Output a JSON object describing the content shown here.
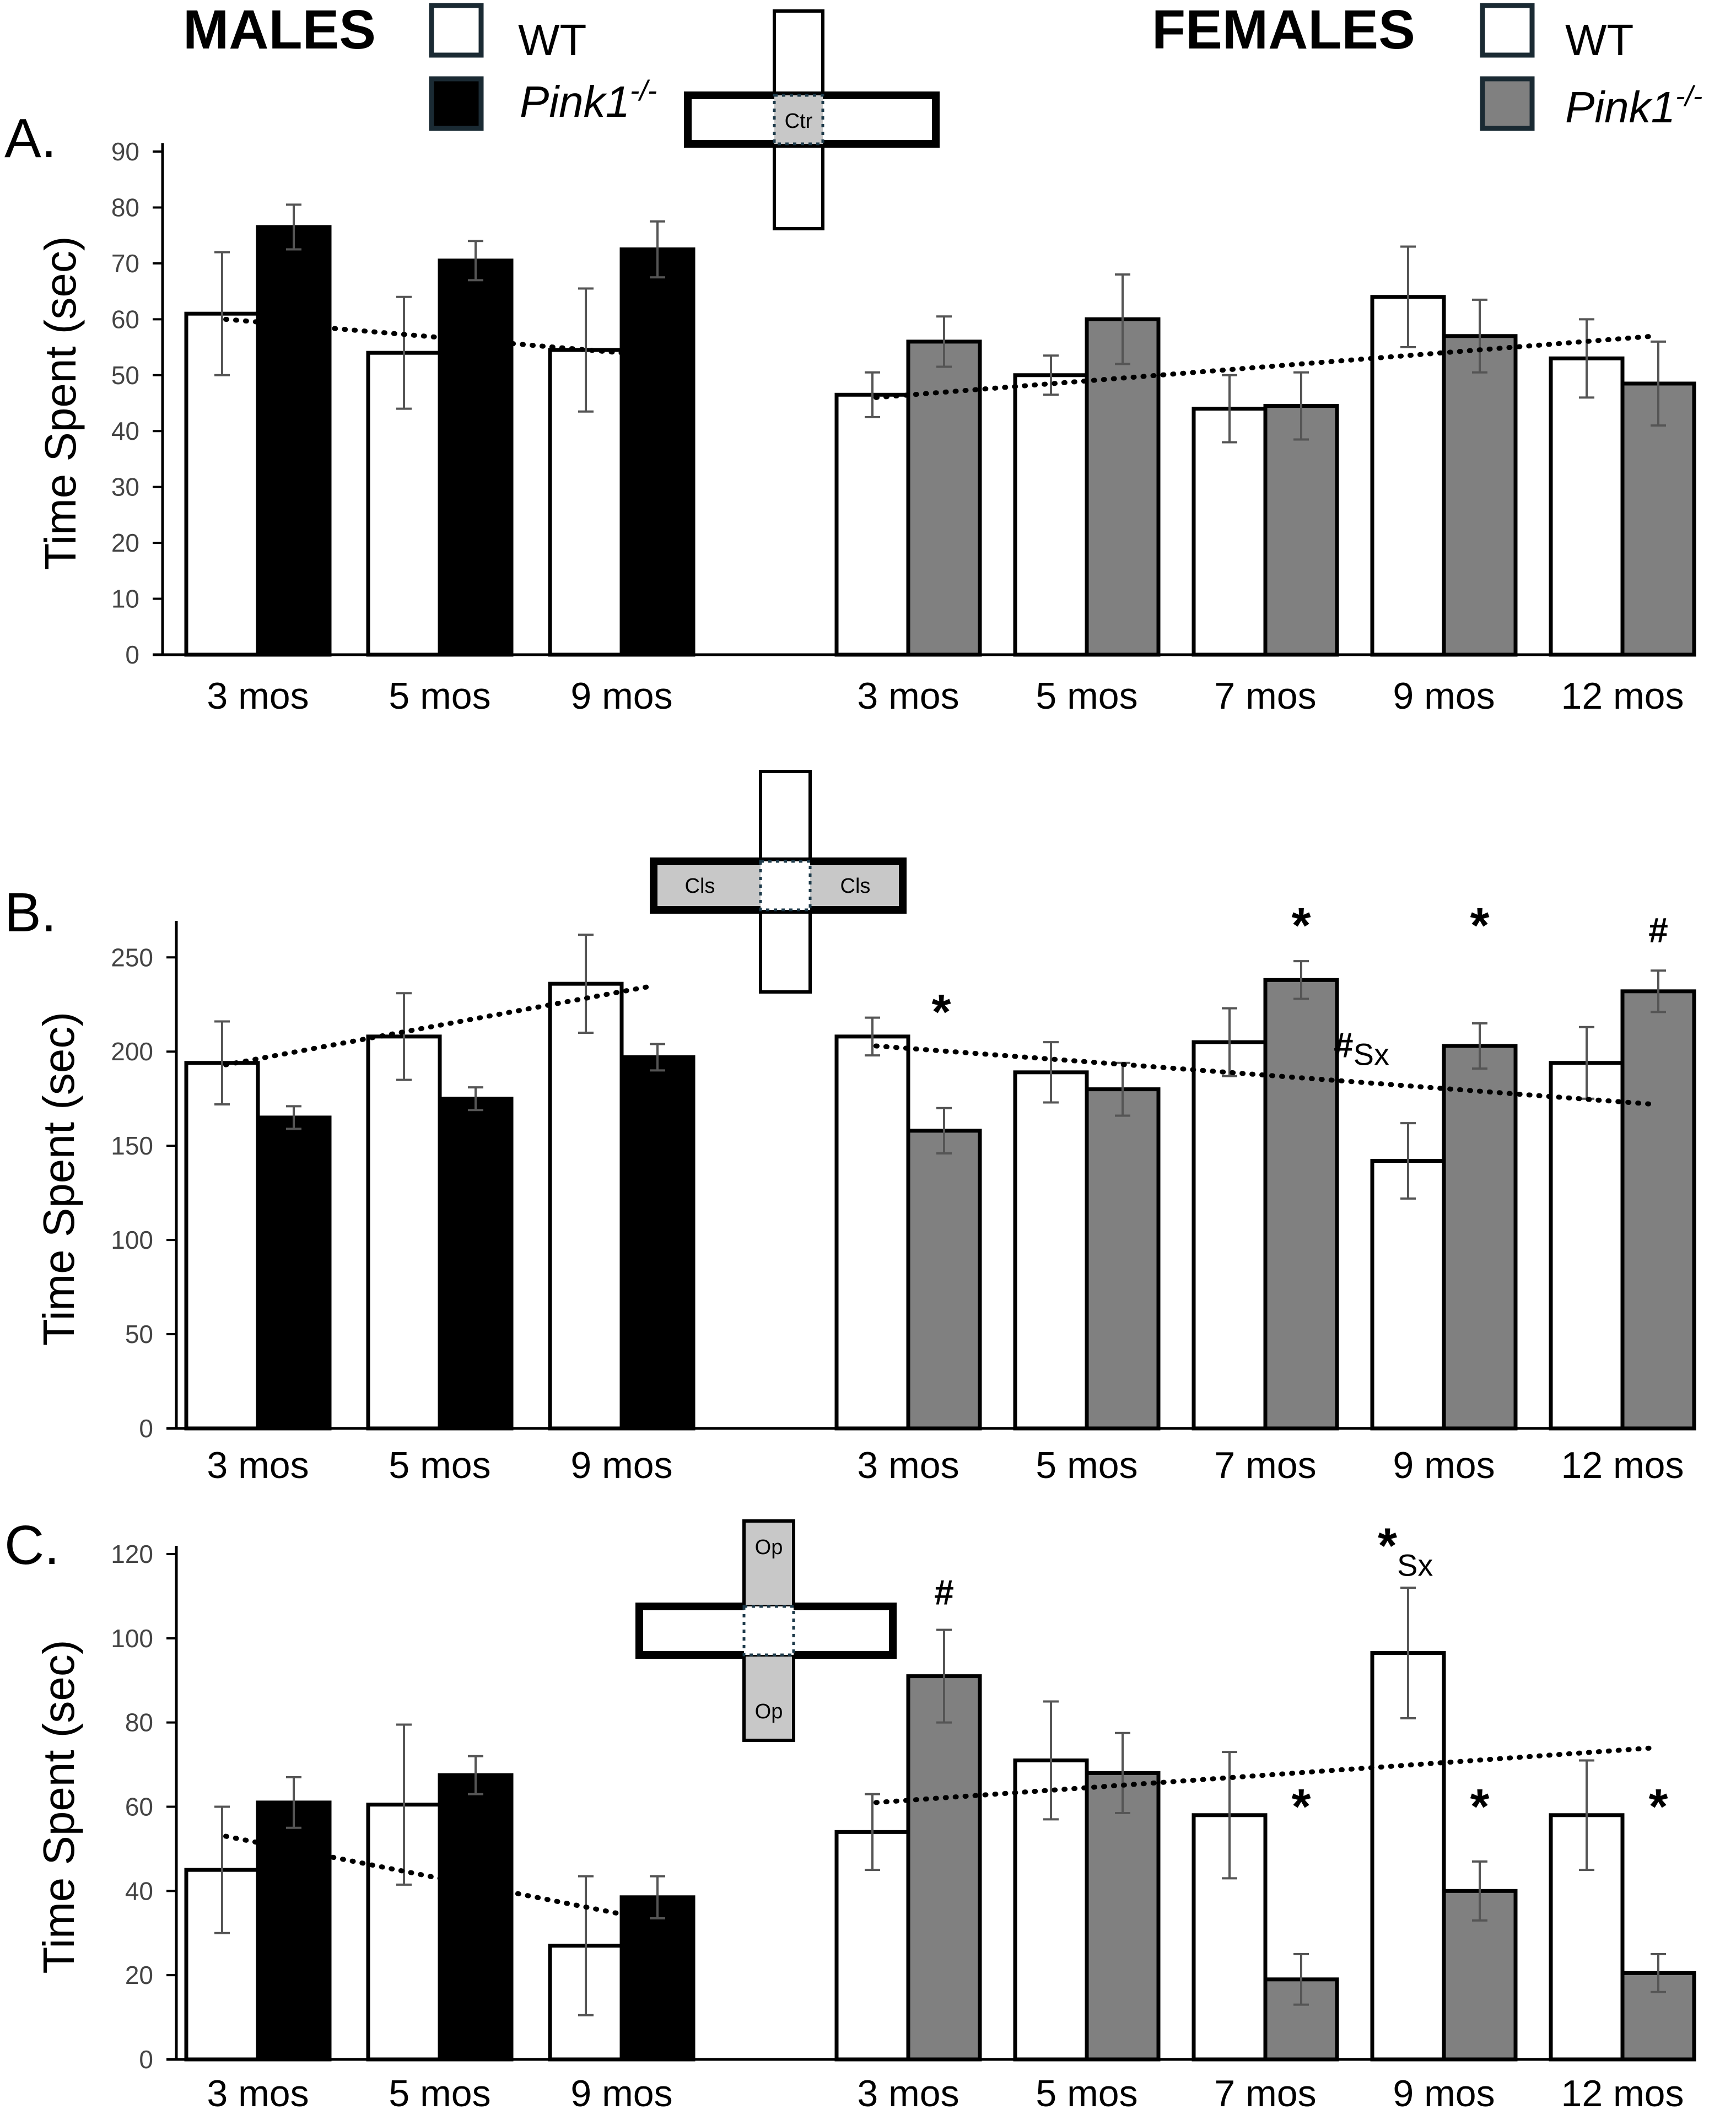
{
  "colors": {
    "wt": "#ffffff",
    "male_ko": "#000000",
    "female_ko": "#808080",
    "axis": "#000000",
    "error": "#555555"
  },
  "legend": {
    "males": {
      "title": "MALES",
      "wt_label": "WT",
      "ko_label": "Pink1",
      "ko_sup": "-/-"
    },
    "females": {
      "title": "FEMALES",
      "wt_label": "WT",
      "ko_label": "Pink1",
      "ko_sup": "-/-"
    }
  },
  "chart_data": [
    {
      "type": "bar",
      "panel_label": "A.",
      "ylabel": "Time Spent (sec)",
      "ylim": [
        0,
        90
      ],
      "yticks": [
        0,
        10,
        20,
        30,
        40,
        50,
        60,
        70,
        80,
        90
      ],
      "maze_icon": {
        "labels": [
          "Ctr"
        ]
      },
      "groups": [
        {
          "name": "MALES",
          "categories": [
            "3 mos",
            "5 mos",
            "9 mos"
          ],
          "series": [
            {
              "name": "WT",
              "values": [
                61,
                54,
                54.5
              ],
              "errors": [
                11,
                10,
                11
              ]
            },
            {
              "name": "Pink1-/-",
              "values": [
                76.5,
                70.5,
                72.5
              ],
              "errors": [
                4,
                3.5,
                5
              ]
            }
          ],
          "trend": [
            60,
            53.5
          ]
        },
        {
          "name": "FEMALES",
          "categories": [
            "3 mos",
            "5 mos",
            "7 mos",
            "9 mos",
            "12 mos"
          ],
          "series": [
            {
              "name": "WT",
              "values": [
                46.5,
                50,
                44,
                64,
                53
              ],
              "errors": [
                4,
                3.5,
                6,
                9,
                7
              ]
            },
            {
              "name": "Pink1-/-",
              "values": [
                56,
                60,
                44.5,
                57,
                48.5
              ],
              "errors": [
                4.5,
                8,
                6,
                6.5,
                7.5
              ]
            }
          ],
          "trend": [
            46,
            57
          ]
        }
      ],
      "annotations": []
    },
    {
      "type": "bar",
      "panel_label": "B.",
      "ylabel": "Time Spent (sec)",
      "ylim": [
        0,
        265
      ],
      "yticks": [
        0,
        50,
        100,
        150,
        200,
        250
      ],
      "maze_icon": {
        "labels": [
          "Cls",
          "Cls"
        ]
      },
      "groups": [
        {
          "name": "MALES",
          "categories": [
            "3 mos",
            "5 mos",
            "9 mos"
          ],
          "series": [
            {
              "name": "WT",
              "values": [
                194,
                208,
                236
              ],
              "errors": [
                22,
                23,
                26
              ]
            },
            {
              "name": "Pink1-/-",
              "values": [
                165,
                175,
                197
              ],
              "errors": [
                6,
                6,
                7
              ]
            }
          ],
          "trend": [
            193,
            235
          ]
        },
        {
          "name": "FEMALES",
          "categories": [
            "3 mos",
            "5 mos",
            "7 mos",
            "9 mos",
            "12 mos"
          ],
          "series": [
            {
              "name": "WT",
              "values": [
                208,
                189,
                205,
                142,
                194
              ],
              "errors": [
                10,
                16,
                18,
                20,
                19
              ]
            },
            {
              "name": "Pink1-/-",
              "values": [
                158,
                180,
                238,
                203,
                232
              ],
              "errors": [
                12,
                14,
                10,
                12,
                11
              ]
            }
          ],
          "trend": [
            203,
            172
          ]
        }
      ],
      "annotations": [
        {
          "text": "*",
          "group": 1,
          "index": 0,
          "value": 212
        },
        {
          "text": "*",
          "group": 1,
          "index": 2,
          "value": 258
        },
        {
          "text": "*",
          "group": 1,
          "index": 3,
          "value": 258
        },
        {
          "text": "#",
          "group": 1,
          "index": 4,
          "value": 258
        },
        {
          "text": "#",
          "sub": "Sx",
          "group": 1,
          "index": 3,
          "value": 197
        }
      ]
    },
    {
      "type": "bar",
      "panel_label": "C.",
      "ylabel": "Time Spent (sec)",
      "ylim": [
        0,
        120
      ],
      "yticks": [
        0,
        20,
        40,
        60,
        80,
        100,
        120
      ],
      "maze_icon": {
        "labels": [
          "Op",
          "Op"
        ]
      },
      "groups": [
        {
          "name": "MALES",
          "categories": [
            "3 mos",
            "5 mos",
            "9 mos"
          ],
          "series": [
            {
              "name": "WT",
              "values": [
                45,
                60.5,
                27
              ],
              "errors": [
                15,
                19,
                16.5
              ]
            },
            {
              "name": "Pink1-/-",
              "values": [
                61,
                67.5,
                38.5
              ],
              "errors": [
                6,
                4.5,
                5
              ]
            }
          ],
          "trend": [
            53,
            33
          ]
        },
        {
          "name": "FEMALES",
          "categories": [
            "3 mos",
            "5 mos",
            "7 mos",
            "9 mos",
            "12 mos"
          ],
          "series": [
            {
              "name": "WT",
              "values": [
                54,
                71,
                58,
                96.5,
                58
              ],
              "errors": [
                9,
                14,
                15,
                15.5,
                13
              ]
            },
            {
              "name": "Pink1-/-",
              "values": [
                91,
                68,
                19,
                40,
                20.5
              ],
              "errors": [
                11,
                9.5,
                6,
                7,
                4.5
              ]
            }
          ],
          "trend": [
            61,
            74
          ]
        }
      ],
      "annotations": [
        {
          "text": "#",
          "group": 1,
          "index": 0,
          "value": 108
        },
        {
          "text": "*",
          "group": 1,
          "index": 2,
          "value": 56
        },
        {
          "text": "*",
          "sub": "Sx",
          "group": 1,
          "index": 3,
          "value": 118
        },
        {
          "text": "*",
          "group": 1,
          "index": 3,
          "value": 56
        },
        {
          "text": "*",
          "group": 1,
          "index": 4,
          "value": 56
        }
      ]
    }
  ]
}
